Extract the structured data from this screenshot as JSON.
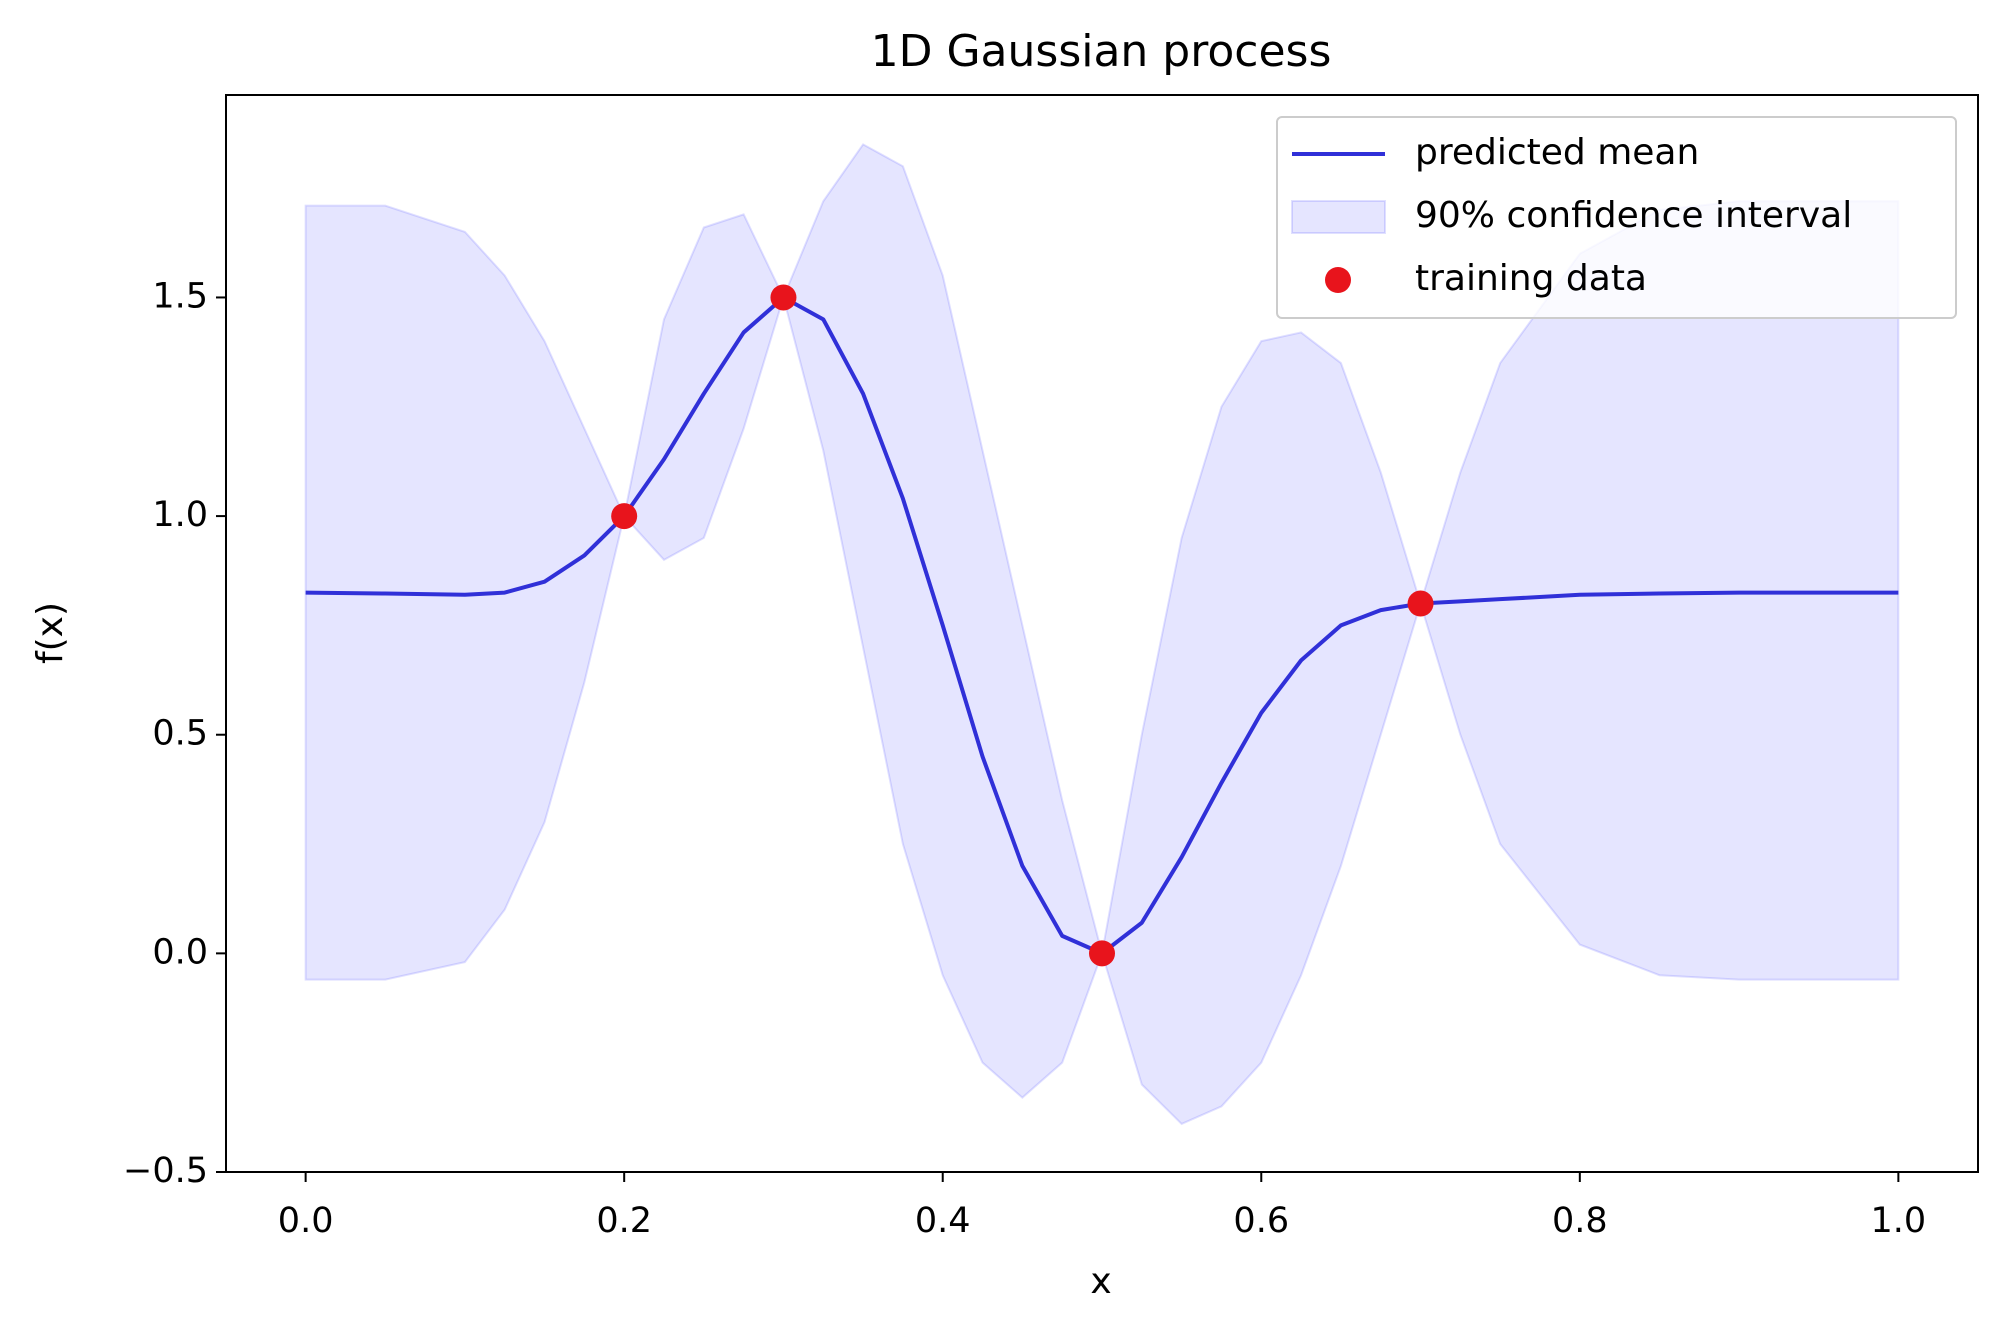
{
  "chart_data": {
    "type": "line",
    "title": "1D Gaussian process",
    "xlabel": "x",
    "ylabel": "f(x)",
    "xlim": [
      -0.05,
      1.05
    ],
    "ylim": [
      -0.5,
      1.963
    ],
    "xticks": [
      {
        "value": 0,
        "label": "0.0"
      },
      0.2,
      0.4,
      0.6,
      0.8,
      {
        "value": 1,
        "label": "1.0"
      }
    ],
    "yticks": [
      {
        "value": -0.5,
        "label": "−0.5"
      },
      {
        "value": 0,
        "label": "0.0"
      },
      0.5,
      {
        "value": 1,
        "label": "1.0"
      },
      1.5
    ],
    "legend": "upper right",
    "x": [
      0,
      0.05,
      0.1,
      0.125,
      0.15,
      0.175,
      0.2,
      0.225,
      0.25,
      0.275,
      0.3,
      0.325,
      0.35,
      0.375,
      0.4,
      0.425,
      0.45,
      0.475,
      0.5,
      0.525,
      0.55,
      0.575,
      0.6,
      0.625,
      0.65,
      0.675,
      0.7,
      0.725,
      0.75,
      0.8,
      0.85,
      0.9,
      1.0
    ],
    "series": [
      {
        "name": "predicted mean",
        "type": "line",
        "color": "#3030d8",
        "values": [
          0.825,
          0.823,
          0.82,
          0.825,
          0.85,
          0.91,
          1.0,
          1.13,
          1.28,
          1.42,
          1.5,
          1.45,
          1.28,
          1.04,
          0.75,
          0.45,
          0.2,
          0.04,
          0.0,
          0.07,
          0.22,
          0.39,
          0.55,
          0.67,
          0.75,
          0.785,
          0.8,
          0.805,
          0.81,
          0.82,
          0.823,
          0.825,
          0.825
        ]
      },
      {
        "name": "90% confidence interval",
        "type": "area",
        "color": "#0000ff",
        "upper": [
          1.71,
          1.71,
          1.65,
          1.55,
          1.4,
          1.2,
          1.0,
          1.45,
          1.66,
          1.69,
          1.5,
          1.72,
          1.85,
          1.8,
          1.55,
          1.15,
          0.75,
          0.35,
          0.0,
          0.5,
          0.95,
          1.25,
          1.4,
          1.42,
          1.35,
          1.1,
          0.8,
          1.1,
          1.35,
          1.6,
          1.7,
          1.72,
          1.72
        ],
        "lower": [
          -0.06,
          -0.06,
          -0.02,
          0.1,
          0.3,
          0.62,
          1.0,
          0.9,
          0.95,
          1.2,
          1.5,
          1.15,
          0.7,
          0.25,
          -0.05,
          -0.25,
          -0.33,
          -0.25,
          0.0,
          -0.3,
          -0.39,
          -0.35,
          -0.25,
          -0.05,
          0.2,
          0.5,
          0.8,
          0.5,
          0.25,
          0.02,
          -0.05,
          -0.06,
          -0.06
        ]
      },
      {
        "name": "training data",
        "type": "scatter",
        "color": "#e8141c",
        "x": [
          0.2,
          0.3,
          0.5,
          0.7
        ],
        "values": [
          1.0,
          1.5,
          0.0,
          0.8
        ]
      }
    ]
  }
}
